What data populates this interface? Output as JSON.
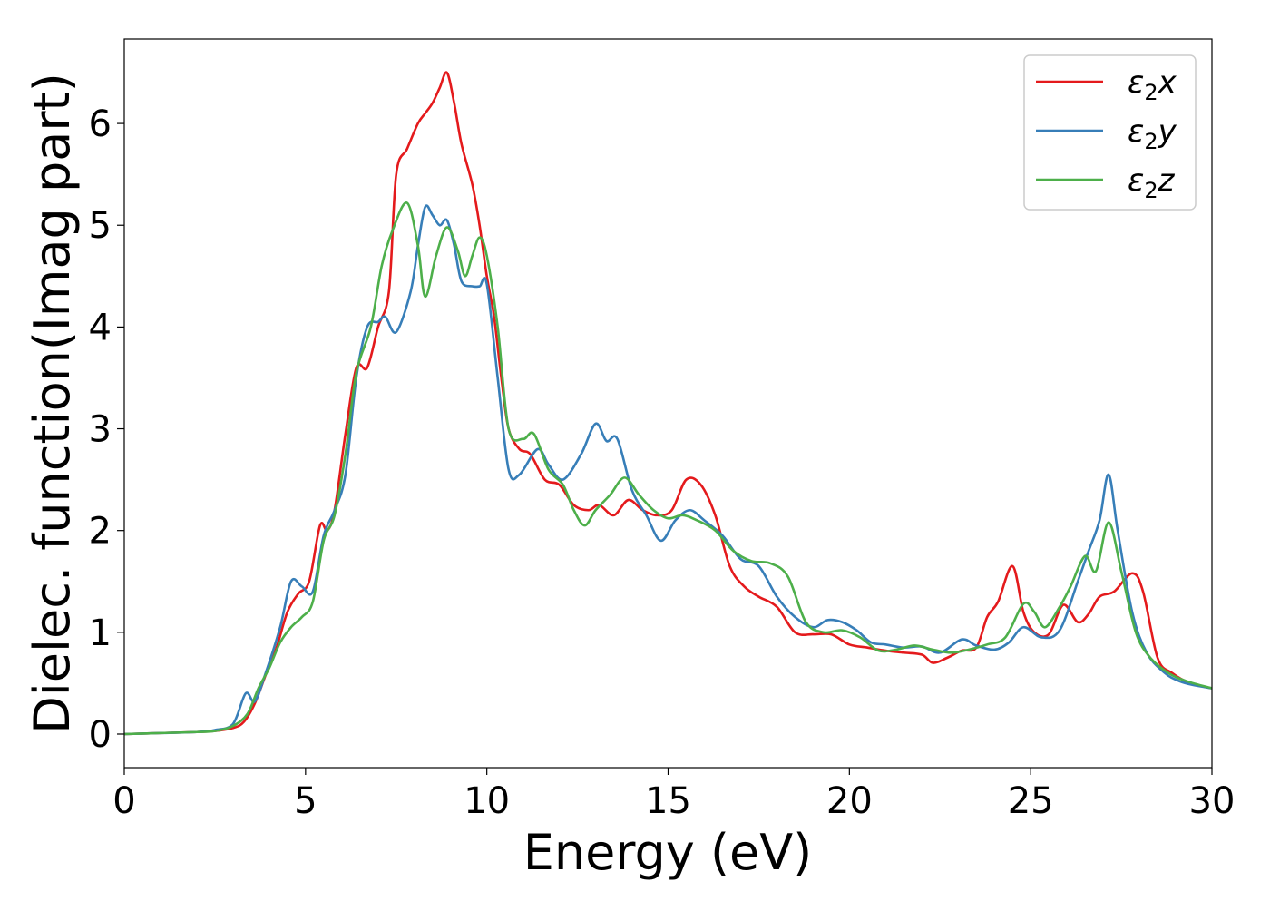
{
  "chart_data": {
    "type": "line",
    "title": "",
    "xlabel": "Energy (eV)",
    "ylabel": "Dielec. function(Imag part)",
    "xlim": [
      0,
      30
    ],
    "ylim": [
      -0.33,
      6.83
    ],
    "xticks": [
      0,
      5,
      10,
      15,
      20,
      25,
      30
    ],
    "yticks": [
      0,
      1,
      2,
      3,
      4,
      5,
      6
    ],
    "grid": false,
    "legend_position": "top-right",
    "series": [
      {
        "name": "ε₂x",
        "legend": {
          "base": "ε",
          "sub": "2",
          "suffix": "x"
        },
        "color": "#e41a1c",
        "points": [
          [
            0,
            0
          ],
          [
            1,
            0.01
          ],
          [
            2,
            0.02
          ],
          [
            2.5,
            0.03
          ],
          [
            3,
            0.06
          ],
          [
            3.3,
            0.12
          ],
          [
            3.6,
            0.3
          ],
          [
            3.9,
            0.58
          ],
          [
            4.2,
            0.85
          ],
          [
            4.5,
            1.2
          ],
          [
            4.8,
            1.38
          ],
          [
            5.1,
            1.5
          ],
          [
            5.4,
            2.05
          ],
          [
            5.6,
            2.0
          ],
          [
            5.8,
            2.2
          ],
          [
            6.1,
            2.95
          ],
          [
            6.4,
            3.6
          ],
          [
            6.7,
            3.6
          ],
          [
            7.0,
            4.0
          ],
          [
            7.3,
            4.35
          ],
          [
            7.5,
            5.5
          ],
          [
            7.8,
            5.75
          ],
          [
            8.1,
            6.0
          ],
          [
            8.3,
            6.1
          ],
          [
            8.5,
            6.2
          ],
          [
            8.7,
            6.35
          ],
          [
            8.9,
            6.5
          ],
          [
            9.1,
            6.2
          ],
          [
            9.3,
            5.8
          ],
          [
            9.6,
            5.4
          ],
          [
            9.8,
            5.0
          ],
          [
            10.0,
            4.5
          ],
          [
            10.2,
            4.1
          ],
          [
            10.4,
            3.5
          ],
          [
            10.6,
            3.0
          ],
          [
            10.9,
            2.8
          ],
          [
            11.2,
            2.75
          ],
          [
            11.6,
            2.5
          ],
          [
            12.0,
            2.45
          ],
          [
            12.4,
            2.25
          ],
          [
            12.8,
            2.2
          ],
          [
            13.1,
            2.25
          ],
          [
            13.5,
            2.15
          ],
          [
            13.9,
            2.3
          ],
          [
            14.3,
            2.2
          ],
          [
            14.7,
            2.15
          ],
          [
            15.1,
            2.2
          ],
          [
            15.5,
            2.5
          ],
          [
            15.9,
            2.45
          ],
          [
            16.3,
            2.15
          ],
          [
            16.7,
            1.65
          ],
          [
            17.1,
            1.45
          ],
          [
            17.5,
            1.35
          ],
          [
            18.0,
            1.25
          ],
          [
            18.5,
            1.0
          ],
          [
            19.0,
            0.98
          ],
          [
            19.5,
            0.98
          ],
          [
            20.0,
            0.88
          ],
          [
            20.5,
            0.85
          ],
          [
            21.0,
            0.82
          ],
          [
            21.5,
            0.8
          ],
          [
            22.0,
            0.78
          ],
          [
            22.3,
            0.7
          ],
          [
            22.7,
            0.75
          ],
          [
            23.1,
            0.82
          ],
          [
            23.5,
            0.85
          ],
          [
            23.8,
            1.15
          ],
          [
            24.1,
            1.3
          ],
          [
            24.5,
            1.65
          ],
          [
            24.8,
            1.2
          ],
          [
            25.1,
            1.0
          ],
          [
            25.5,
            0.98
          ],
          [
            25.9,
            1.27
          ],
          [
            26.3,
            1.1
          ],
          [
            26.6,
            1.18
          ],
          [
            26.9,
            1.35
          ],
          [
            27.3,
            1.4
          ],
          [
            27.8,
            1.58
          ],
          [
            28.1,
            1.4
          ],
          [
            28.5,
            0.75
          ],
          [
            28.9,
            0.6
          ],
          [
            29.4,
            0.5
          ],
          [
            30,
            0.45
          ]
        ]
      },
      {
        "name": "ε₂y",
        "legend": {
          "base": "ε",
          "sub": "2",
          "suffix": "y"
        },
        "color": "#377eb8",
        "points": [
          [
            0,
            0
          ],
          [
            1,
            0.01
          ],
          [
            2,
            0.02
          ],
          [
            2.5,
            0.04
          ],
          [
            3.0,
            0.1
          ],
          [
            3.35,
            0.4
          ],
          [
            3.6,
            0.32
          ],
          [
            3.9,
            0.6
          ],
          [
            4.3,
            1.05
          ],
          [
            4.6,
            1.5
          ],
          [
            4.9,
            1.45
          ],
          [
            5.2,
            1.4
          ],
          [
            5.5,
            1.95
          ],
          [
            5.8,
            2.2
          ],
          [
            6.1,
            2.55
          ],
          [
            6.4,
            3.5
          ],
          [
            6.7,
            4.0
          ],
          [
            7.0,
            4.05
          ],
          [
            7.2,
            4.1
          ],
          [
            7.5,
            3.95
          ],
          [
            7.9,
            4.35
          ],
          [
            8.1,
            4.8
          ],
          [
            8.3,
            5.18
          ],
          [
            8.5,
            5.1
          ],
          [
            8.7,
            5.0
          ],
          [
            8.9,
            5.05
          ],
          [
            9.1,
            4.8
          ],
          [
            9.3,
            4.45
          ],
          [
            9.6,
            4.4
          ],
          [
            9.8,
            4.4
          ],
          [
            10.0,
            4.42
          ],
          [
            10.3,
            3.5
          ],
          [
            10.6,
            2.6
          ],
          [
            10.9,
            2.55
          ],
          [
            11.4,
            2.8
          ],
          [
            11.7,
            2.65
          ],
          [
            12.1,
            2.5
          ],
          [
            12.6,
            2.75
          ],
          [
            13.0,
            3.05
          ],
          [
            13.3,
            2.88
          ],
          [
            13.6,
            2.9
          ],
          [
            14.0,
            2.4
          ],
          [
            14.4,
            2.15
          ],
          [
            14.8,
            1.9
          ],
          [
            15.2,
            2.1
          ],
          [
            15.6,
            2.2
          ],
          [
            16.0,
            2.1
          ],
          [
            16.5,
            1.95
          ],
          [
            17.0,
            1.72
          ],
          [
            17.5,
            1.65
          ],
          [
            18.0,
            1.35
          ],
          [
            18.5,
            1.15
          ],
          [
            19.0,
            1.05
          ],
          [
            19.4,
            1.12
          ],
          [
            19.8,
            1.1
          ],
          [
            20.2,
            1.02
          ],
          [
            20.6,
            0.9
          ],
          [
            21.0,
            0.88
          ],
          [
            21.5,
            0.85
          ],
          [
            22.0,
            0.86
          ],
          [
            22.5,
            0.8
          ],
          [
            23.1,
            0.93
          ],
          [
            23.5,
            0.87
          ],
          [
            24.0,
            0.83
          ],
          [
            24.4,
            0.9
          ],
          [
            24.8,
            1.05
          ],
          [
            25.3,
            0.95
          ],
          [
            25.8,
            1.02
          ],
          [
            26.3,
            1.5
          ],
          [
            26.6,
            1.8
          ],
          [
            26.9,
            2.1
          ],
          [
            27.15,
            2.55
          ],
          [
            27.4,
            2.0
          ],
          [
            27.8,
            1.2
          ],
          [
            28.2,
            0.8
          ],
          [
            28.7,
            0.6
          ],
          [
            29.1,
            0.52
          ],
          [
            29.5,
            0.48
          ],
          [
            30,
            0.45
          ]
        ]
      },
      {
        "name": "ε₂z",
        "legend": {
          "base": "ε",
          "sub": "2",
          "suffix": "z"
        },
        "color": "#4daf4a",
        "points": [
          [
            0,
            0
          ],
          [
            1,
            0.01
          ],
          [
            2,
            0.02
          ],
          [
            2.5,
            0.03
          ],
          [
            3.0,
            0.08
          ],
          [
            3.4,
            0.2
          ],
          [
            3.7,
            0.45
          ],
          [
            4.0,
            0.65
          ],
          [
            4.3,
            0.9
          ],
          [
            4.6,
            1.05
          ],
          [
            4.9,
            1.15
          ],
          [
            5.2,
            1.3
          ],
          [
            5.5,
            1.9
          ],
          [
            5.8,
            2.15
          ],
          [
            6.1,
            2.75
          ],
          [
            6.4,
            3.55
          ],
          [
            6.8,
            4.0
          ],
          [
            7.1,
            4.6
          ],
          [
            7.4,
            4.95
          ],
          [
            7.8,
            5.22
          ],
          [
            8.1,
            4.8
          ],
          [
            8.3,
            4.3
          ],
          [
            8.6,
            4.7
          ],
          [
            8.9,
            4.98
          ],
          [
            9.2,
            4.75
          ],
          [
            9.4,
            4.5
          ],
          [
            9.6,
            4.7
          ],
          [
            9.8,
            4.88
          ],
          [
            10.0,
            4.7
          ],
          [
            10.3,
            4.0
          ],
          [
            10.6,
            3.0
          ],
          [
            11.0,
            2.9
          ],
          [
            11.3,
            2.95
          ],
          [
            11.7,
            2.6
          ],
          [
            12.1,
            2.45
          ],
          [
            12.4,
            2.2
          ],
          [
            12.7,
            2.05
          ],
          [
            13.0,
            2.2
          ],
          [
            13.4,
            2.35
          ],
          [
            13.8,
            2.52
          ],
          [
            14.2,
            2.35
          ],
          [
            14.6,
            2.2
          ],
          [
            15.0,
            2.12
          ],
          [
            15.4,
            2.15
          ],
          [
            15.8,
            2.1
          ],
          [
            16.3,
            2.0
          ],
          [
            16.8,
            1.8
          ],
          [
            17.3,
            1.7
          ],
          [
            17.8,
            1.68
          ],
          [
            18.3,
            1.55
          ],
          [
            18.8,
            1.1
          ],
          [
            19.3,
            1.0
          ],
          [
            19.8,
            1.02
          ],
          [
            20.3,
            0.95
          ],
          [
            20.8,
            0.82
          ],
          [
            21.3,
            0.83
          ],
          [
            21.8,
            0.87
          ],
          [
            22.3,
            0.83
          ],
          [
            22.8,
            0.8
          ],
          [
            23.3,
            0.83
          ],
          [
            23.8,
            0.88
          ],
          [
            24.3,
            0.95
          ],
          [
            24.8,
            1.28
          ],
          [
            25.1,
            1.2
          ],
          [
            25.4,
            1.05
          ],
          [
            25.8,
            1.25
          ],
          [
            26.1,
            1.45
          ],
          [
            26.5,
            1.75
          ],
          [
            26.8,
            1.6
          ],
          [
            27.15,
            2.08
          ],
          [
            27.5,
            1.6
          ],
          [
            27.9,
            1.0
          ],
          [
            28.3,
            0.75
          ],
          [
            28.8,
            0.6
          ],
          [
            29.3,
            0.52
          ],
          [
            30,
            0.45
          ]
        ]
      }
    ]
  }
}
